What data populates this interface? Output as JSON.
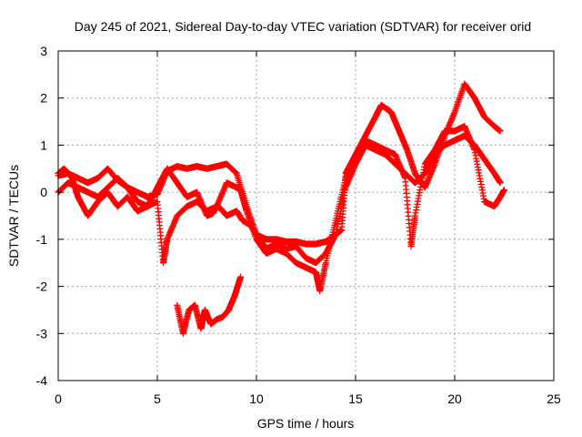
{
  "chart_data": {
    "type": "scatter",
    "title": "Day 245 of 2021, Sidereal Day-to-day VTEC variation (SDTVAR) for receiver orid",
    "xlabel": "GPS time / hours",
    "ylabel": "SDTVAR / TECUs",
    "xlim": [
      0,
      25
    ],
    "ylim": [
      -4,
      3
    ],
    "xticks": [
      0,
      5,
      10,
      15,
      20,
      25
    ],
    "yticks": [
      -4,
      -3,
      -2,
      -1,
      0,
      1,
      2,
      3
    ],
    "xtick_labels": [
      "0",
      "5",
      "10",
      "15",
      "20",
      "25"
    ],
    "ytick_labels": [
      "-4",
      "-3",
      "-2",
      "-1",
      "0",
      "1",
      "2",
      "3"
    ],
    "grid": true,
    "marker": "+",
    "color": "#ff0000",
    "series": [
      {
        "name": "track-1",
        "x": [
          0.0,
          0.5,
          1.0,
          1.5,
          2.0,
          2.5,
          3.0,
          3.5,
          4.0,
          4.5,
          5.0,
          5.5,
          6.0,
          6.5,
          7.0,
          7.5,
          8.0,
          8.5,
          9.0,
          9.5,
          10.0,
          10.5,
          11.0,
          11.5,
          12.0,
          12.5,
          13.0,
          13.5,
          14.0,
          14.5,
          15.0,
          15.5,
          16.0,
          16.5,
          17.0,
          17.5,
          18.0,
          18.5,
          19.0,
          19.5,
          20.0,
          20.5,
          21.0,
          21.5,
          22.0,
          22.3
        ],
        "y": [
          0.35,
          0.4,
          0.3,
          0.2,
          0.3,
          0.5,
          0.25,
          0.1,
          0.0,
          -0.1,
          -0.05,
          0.45,
          0.55,
          0.5,
          0.55,
          0.5,
          0.55,
          0.6,
          0.4,
          -0.3,
          -0.9,
          -1.2,
          -1.1,
          -1.2,
          -1.15,
          -1.4,
          -1.5,
          -1.3,
          -0.9,
          0.1,
          0.6,
          1.0,
          0.9,
          0.8,
          0.6,
          0.4,
          0.2,
          0.4,
          0.8,
          1.0,
          1.1,
          1.2,
          1.0,
          0.7,
          0.4,
          0.2
        ]
      },
      {
        "name": "track-2",
        "x": [
          0.0,
          0.5,
          1.0,
          1.5,
          2.0,
          2.5,
          3.0,
          3.5,
          4.0,
          4.5,
          5.0,
          5.3,
          5.5,
          6.0,
          6.5,
          7.0,
          7.5,
          8.0,
          8.5,
          9.0,
          9.2,
          9.5,
          10.0,
          10.5,
          11.0,
          11.5,
          12.0,
          12.5,
          13.0,
          13.2,
          13.5,
          14.0,
          14.5,
          15.0,
          15.5,
          16.0,
          16.3,
          16.8,
          17.2,
          17.6,
          18.0,
          18.5,
          19.0,
          19.5,
          20.0,
          20.5,
          21.0,
          21.5,
          22.0,
          22.3
        ],
        "y": [
          0.0,
          0.2,
          0.1,
          0.0,
          -0.1,
          0.1,
          0.3,
          0.1,
          -0.2,
          -0.3,
          -0.2,
          -1.5,
          -1.0,
          -0.5,
          -0.3,
          -0.2,
          -0.4,
          -0.3,
          0.2,
          0.1,
          0.05,
          -0.4,
          -1.0,
          -1.3,
          -1.2,
          -1.3,
          -1.5,
          -1.6,
          -1.7,
          -2.1,
          -1.5,
          -0.6,
          0.3,
          0.8,
          1.2,
          1.6,
          1.85,
          1.7,
          1.3,
          0.9,
          0.4,
          0.1,
          0.6,
          1.2,
          1.7,
          2.3,
          2.0,
          1.6,
          1.4,
          1.3
        ]
      },
      {
        "name": "track-3",
        "x": [
          0.0,
          0.3,
          0.7,
          1.0,
          1.5,
          2.0,
          2.5,
          3.0,
          3.5,
          4.0,
          4.5,
          5.0,
          5.5,
          6.0,
          6.5,
          7.0,
          7.5,
          7.8,
          8.0,
          8.2,
          8.5,
          9.0,
          9.3,
          9.7,
          10.0,
          10.5,
          11.0,
          11.5,
          12.0,
          12.5,
          13.0,
          13.5,
          14.0,
          14.3,
          14.5,
          15.0,
          15.5,
          16.0,
          16.5,
          17.0,
          17.5,
          17.8,
          18.0,
          18.5,
          19.0,
          19.5,
          20.0,
          20.5,
          21.0,
          21.5,
          22.0,
          22.3,
          22.5
        ],
        "y": [
          0.4,
          0.5,
          0.3,
          -0.1,
          -0.5,
          -0.2,
          0.0,
          -0.3,
          -0.1,
          -0.4,
          -0.3,
          0.1,
          0.5,
          0.2,
          -0.1,
          0.0,
          -0.5,
          -0.45,
          -0.3,
          -0.35,
          -0.5,
          -0.4,
          -0.6,
          -0.7,
          -0.9,
          -1.0,
          -1.0,
          -1.05,
          -1.05,
          -1.1,
          -1.1,
          -1.05,
          -0.9,
          -0.8,
          0.4,
          0.8,
          1.1,
          1.0,
          0.9,
          0.8,
          0.3,
          -1.15,
          -0.5,
          0.6,
          0.9,
          1.3,
          1.3,
          1.4,
          0.9,
          -0.2,
          -0.3,
          -0.1,
          0.05
        ]
      },
      {
        "name": "track-4",
        "x": [
          6.0,
          6.3,
          6.6,
          6.9,
          7.2,
          7.4,
          7.7,
          8.0,
          8.3,
          8.6,
          8.9,
          9.2
        ],
        "y": [
          -2.4,
          -3.0,
          -2.5,
          -2.4,
          -2.9,
          -2.5,
          -2.8,
          -2.7,
          -2.65,
          -2.5,
          -2.2,
          -1.8
        ]
      }
    ]
  }
}
